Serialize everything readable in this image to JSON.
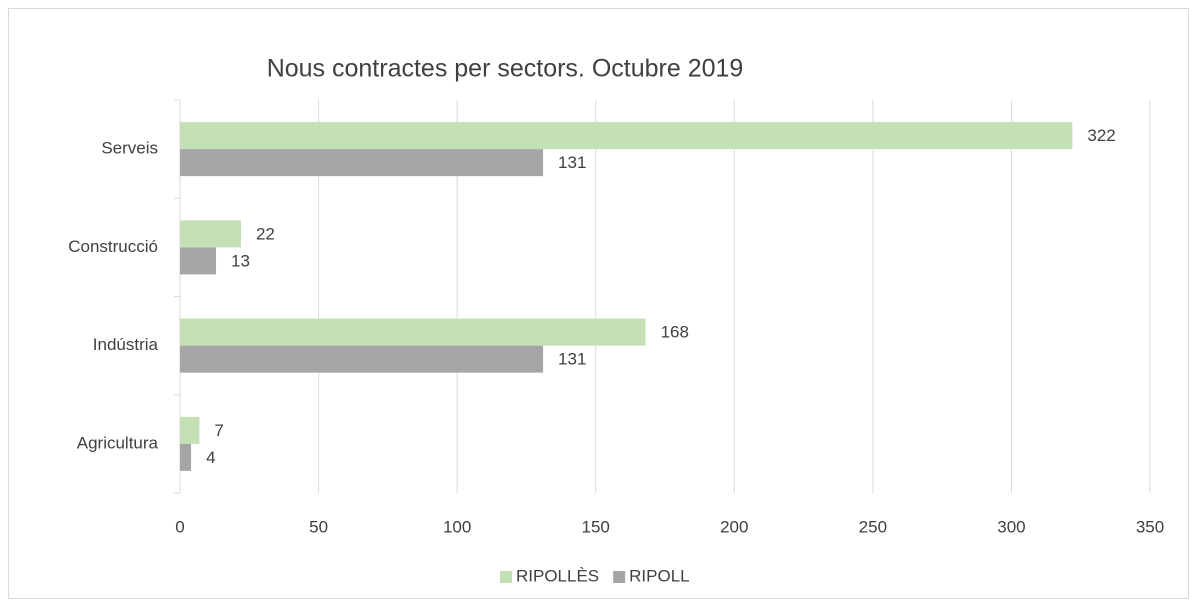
{
  "chart_data": {
    "type": "barh",
    "title": "Nous contractes per sectors. Octubre 2019",
    "categories": [
      "Serveis",
      "Construcció",
      "Indústria",
      "Agricultura"
    ],
    "series": [
      {
        "name": "RIPOLLÈS",
        "color": "#c5e0b4",
        "values": [
          322,
          22,
          168,
          7
        ]
      },
      {
        "name": "RIPOLL",
        "color": "#a5a5a5",
        "values": [
          131,
          13,
          131,
          4
        ]
      }
    ],
    "xlim": [
      0,
      350
    ],
    "xticks": [
      0,
      50,
      100,
      150,
      200,
      250,
      300,
      350
    ],
    "grid": true,
    "legend": "bottom"
  }
}
